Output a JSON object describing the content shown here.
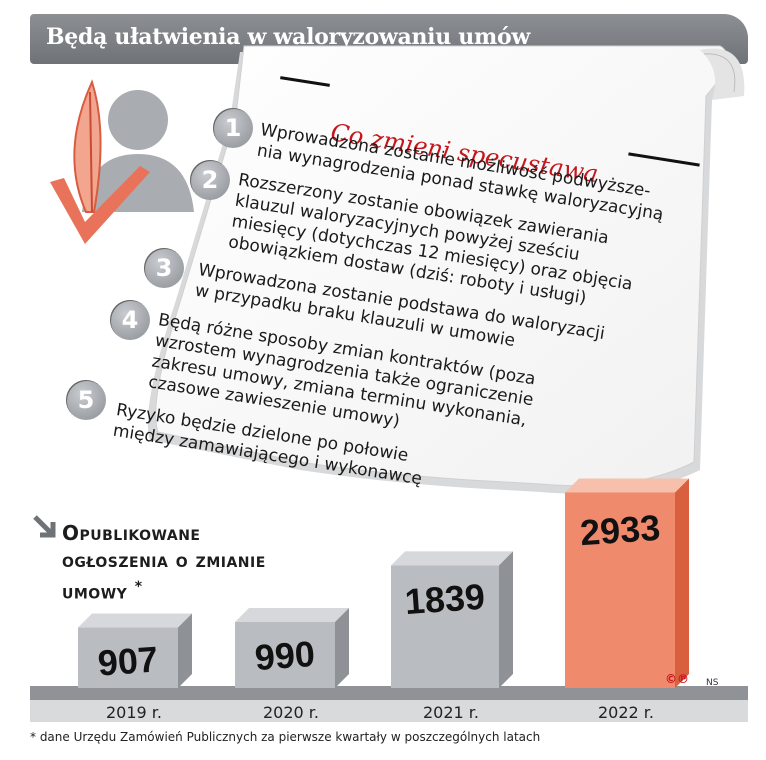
{
  "header": {
    "title": "Będą ułatwienia w waloryzowaniu umów"
  },
  "paper": {
    "title": "Co zmieni specustawa",
    "items": [
      {
        "num": "1",
        "text": "Wprowadzona zostanie możliwość podwyższe-\nnia wynagrodzenia ponad stawkę waloryzacyjną"
      },
      {
        "num": "2",
        "text": "Rozszerzony zostanie obowiązek zawierania\nklauzul waloryzacyjnych powyżej sześciu\nmiesięcy (dotychczas 12 miesięcy) oraz objęcia\nobowiązkiem dostaw (dziś: roboty i usługi)"
      },
      {
        "num": "3",
        "text": "Wprowadzona zostanie podstawa do waloryzacji\nw przypadku braku klauzuli w umowie"
      },
      {
        "num": "4",
        "text": "Będą różne sposoby zmian kontraktów (poza\nwzrostem wynagrodzenia także ograniczenie\nzakresu umowy, zmiana terminu wykonania,\nczasowe zawieszenie umowy)"
      },
      {
        "num": "5",
        "text": "Ryzyko będzie dzielone po połowie\nmiędzy zamawiającego i wykonawcę"
      }
    ]
  },
  "chart_heading": {
    "line1": "Opublikowane",
    "line2": "ogłoszenia o zmianie",
    "line3": "umowy",
    "star": "*"
  },
  "chart_data": {
    "type": "bar",
    "title": "Opublikowane ogłoszenia o zmianie umowy *",
    "categories": [
      "2019 r.",
      "2020 r.",
      "2021 r.",
      "2022 r."
    ],
    "values": [
      907,
      990,
      1839,
      2933
    ],
    "highlight_color": "#f08a6c",
    "bar_color": "#b9bcc0"
  },
  "footnote": "* dane Urzędu Zamówień Publicznych za pierwsze kwartały w poszczególnych latach",
  "credits": {
    "cp": "©℗",
    "ns": "NS"
  }
}
